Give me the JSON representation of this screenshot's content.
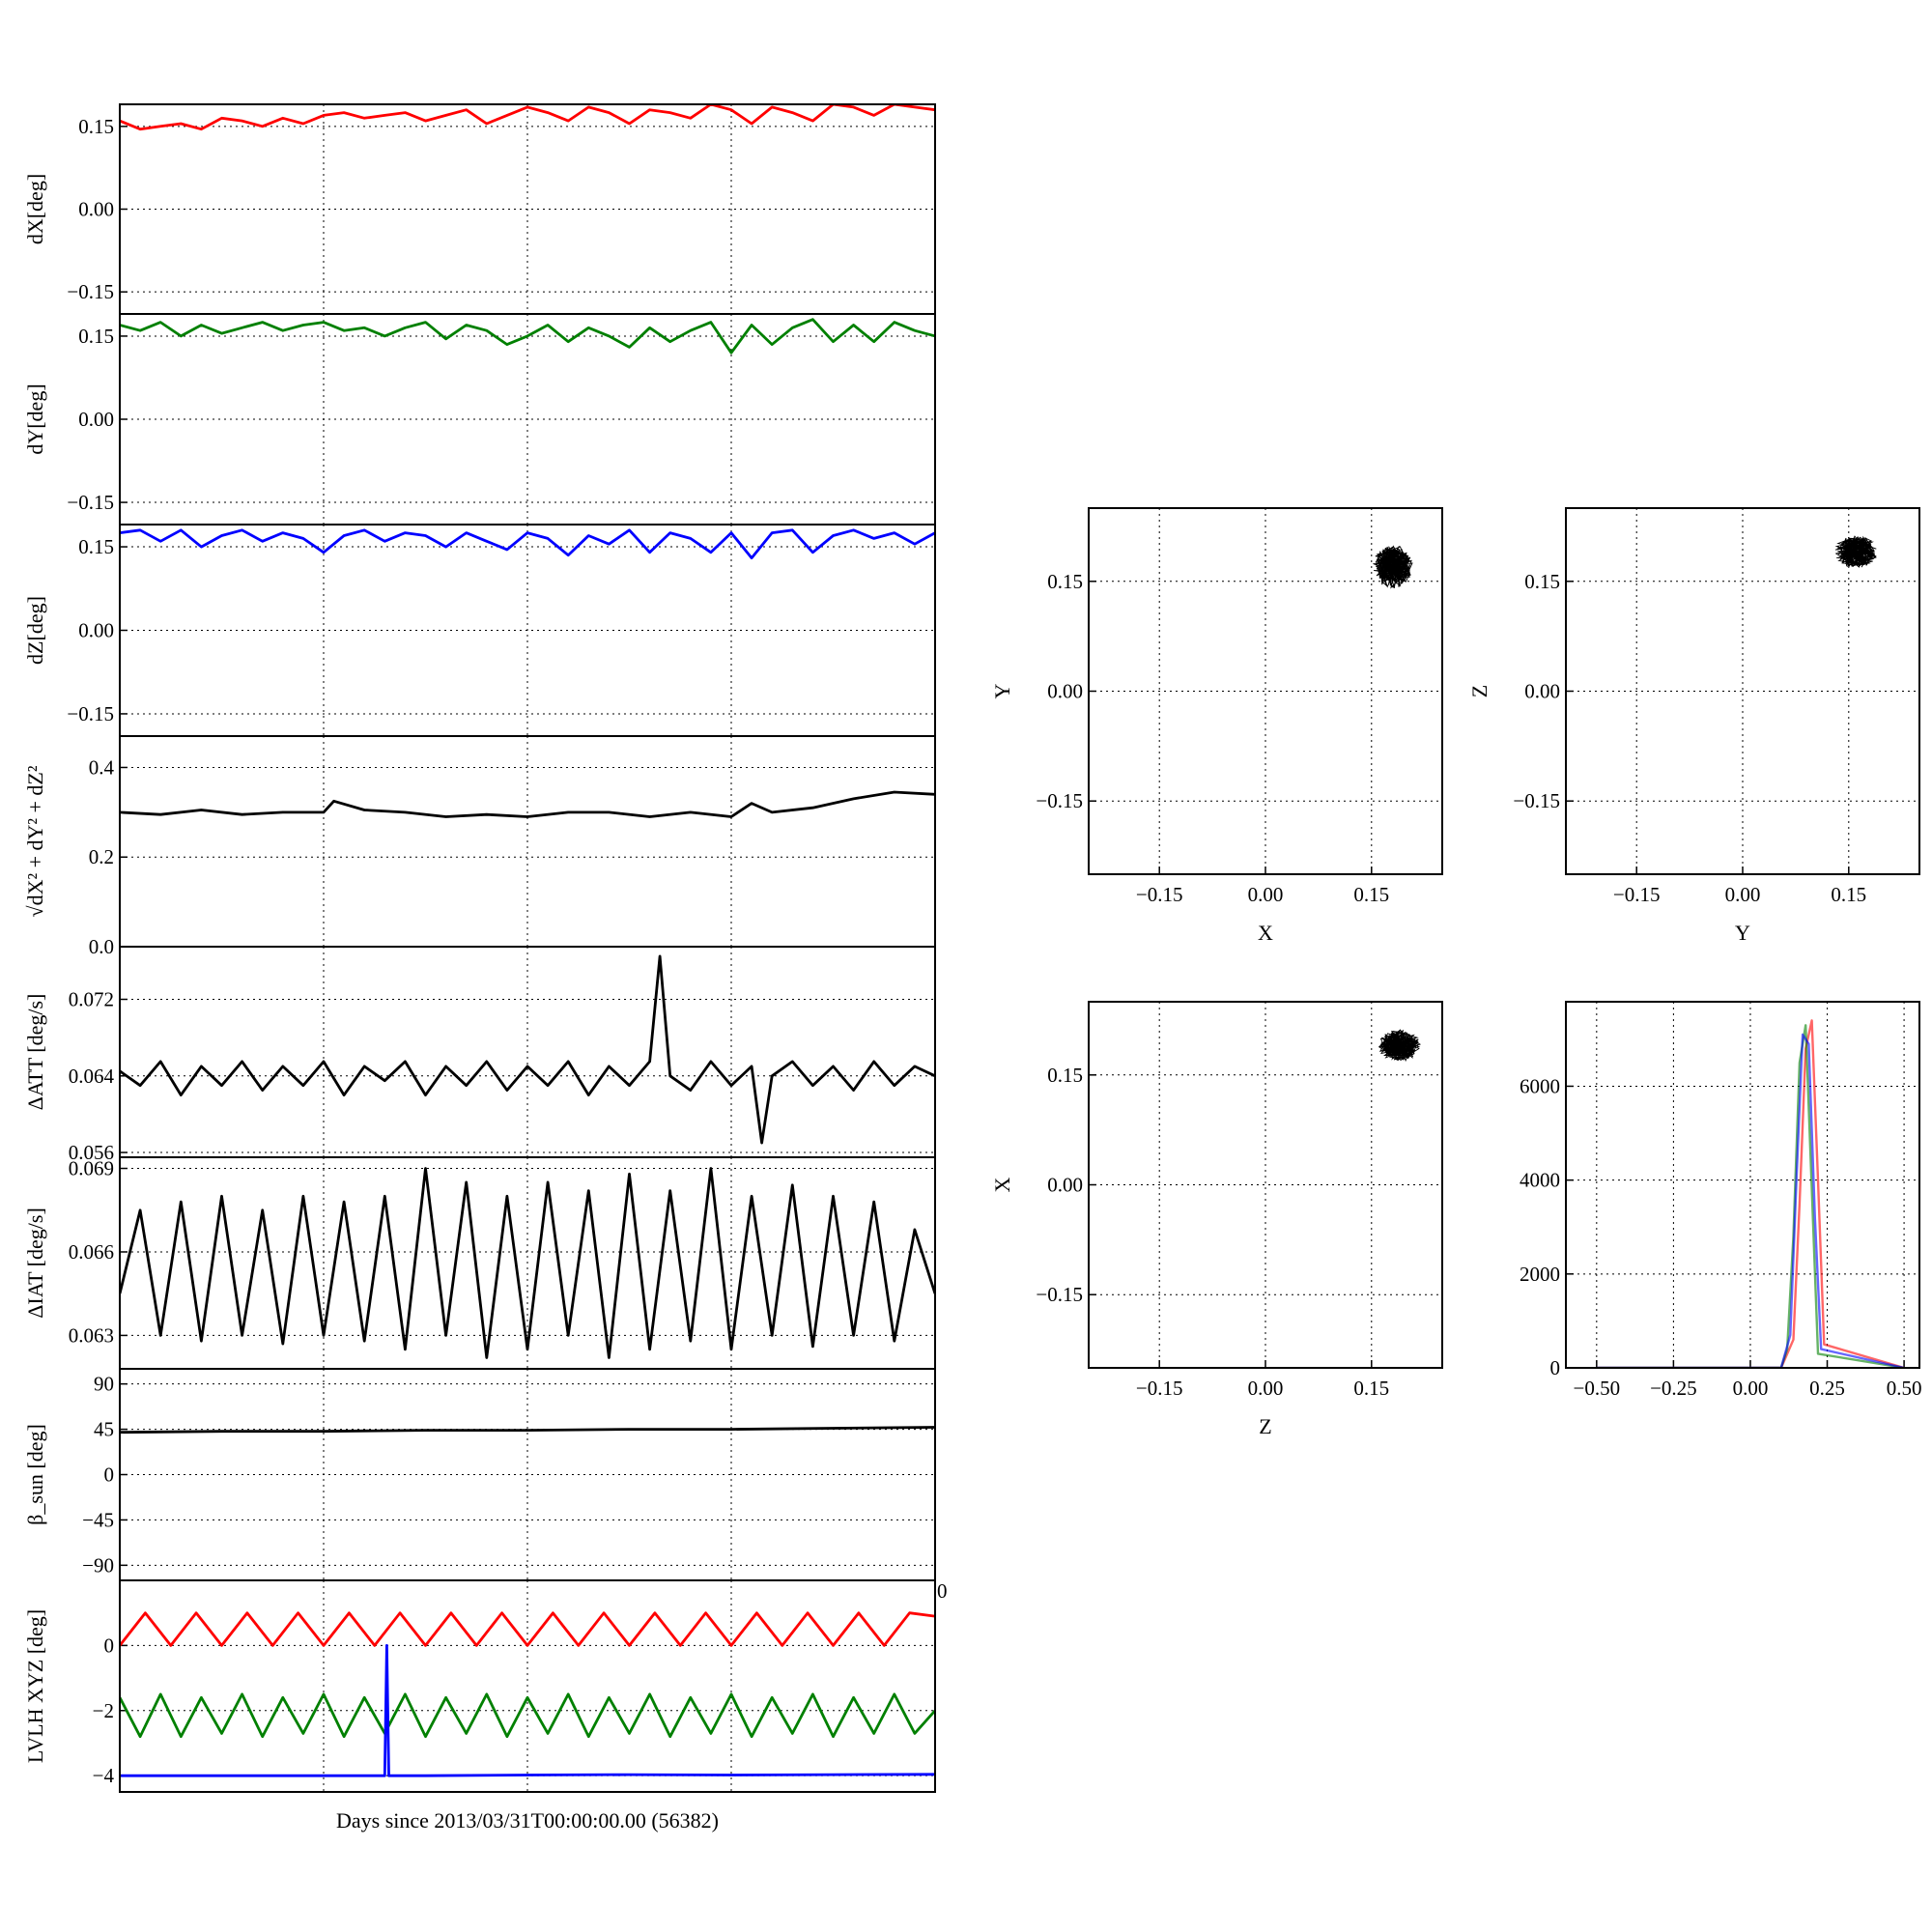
{
  "figure": {
    "xlabel": "Days since 2013/03/31T00:00:00.00 (56382)"
  },
  "colors": {
    "red": "#ff0000",
    "green": "#008000",
    "blue": "#0000ff",
    "black": "#000000"
  },
  "chart_data": [
    {
      "id": "dX",
      "type": "line",
      "ylabel": "dX[deg]",
      "ylim": [
        -0.19,
        0.19
      ],
      "yticks": [
        "0.15",
        "0.00",
        "−0.15"
      ],
      "ytick_values": [
        0.15,
        0.0,
        -0.15
      ],
      "xlim": [
        0,
        4
      ],
      "grid": true,
      "tick_labels_x": [],
      "series": [
        {
          "color": "#ff0000",
          "x": [
            0,
            0.1,
            0.2,
            0.3,
            0.4,
            0.5,
            0.6,
            0.7,
            0.8,
            0.9,
            1,
            1.1,
            1.2,
            1.3,
            1.4,
            1.5,
            1.6,
            1.7,
            1.8,
            1.9,
            2,
            2.1,
            2.2,
            2.3,
            2.4,
            2.5,
            2.6,
            2.7,
            2.8,
            2.9,
            3,
            3.1,
            3.2,
            3.3,
            3.4,
            3.5,
            3.6,
            3.7,
            3.8,
            3.9,
            4
          ],
          "y": [
            0.16,
            0.145,
            0.15,
            0.155,
            0.145,
            0.165,
            0.16,
            0.15,
            0.165,
            0.155,
            0.17,
            0.175,
            0.165,
            0.17,
            0.175,
            0.16,
            0.17,
            0.18,
            0.155,
            0.17,
            0.185,
            0.175,
            0.16,
            0.185,
            0.175,
            0.155,
            0.18,
            0.175,
            0.165,
            0.19,
            0.18,
            0.155,
            0.185,
            0.175,
            0.16,
            0.19,
            0.185,
            0.17,
            0.19,
            0.185,
            0.18
          ]
        }
      ]
    },
    {
      "id": "dY",
      "type": "line",
      "ylabel": "dY[deg]",
      "ylim": [
        -0.19,
        0.19
      ],
      "yticks": [
        "0.15",
        "0.00",
        "−0.15"
      ],
      "ytick_values": [
        0.15,
        0.0,
        -0.15
      ],
      "xlim": [
        0,
        4
      ],
      "grid": true,
      "tick_labels_x": [],
      "series": [
        {
          "color": "#008000",
          "x": [
            0,
            0.1,
            0.2,
            0.3,
            0.4,
            0.5,
            0.6,
            0.7,
            0.8,
            0.9,
            1,
            1.1,
            1.2,
            1.3,
            1.4,
            1.5,
            1.6,
            1.7,
            1.8,
            1.9,
            2,
            2.1,
            2.2,
            2.3,
            2.4,
            2.5,
            2.6,
            2.7,
            2.8,
            2.9,
            3,
            3.1,
            3.2,
            3.3,
            3.4,
            3.5,
            3.6,
            3.7,
            3.8,
            3.9,
            4
          ],
          "y": [
            0.17,
            0.16,
            0.175,
            0.15,
            0.17,
            0.155,
            0.165,
            0.175,
            0.16,
            0.17,
            0.175,
            0.16,
            0.165,
            0.15,
            0.165,
            0.175,
            0.145,
            0.17,
            0.16,
            0.135,
            0.15,
            0.17,
            0.14,
            0.165,
            0.15,
            0.13,
            0.165,
            0.14,
            0.16,
            0.175,
            0.12,
            0.17,
            0.135,
            0.165,
            0.18,
            0.14,
            0.17,
            0.14,
            0.175,
            0.16,
            0.15
          ]
        }
      ]
    },
    {
      "id": "dZ",
      "type": "line",
      "ylabel": "dZ[deg]",
      "ylim": [
        -0.19,
        0.19
      ],
      "yticks": [
        "0.15",
        "0.00",
        "−0.15"
      ],
      "ytick_values": [
        0.15,
        0.0,
        -0.15
      ],
      "xlim": [
        0,
        4
      ],
      "grid": true,
      "tick_labels_x": [],
      "series": [
        {
          "color": "#0000ff",
          "x": [
            0,
            0.1,
            0.2,
            0.3,
            0.4,
            0.5,
            0.6,
            0.7,
            0.8,
            0.9,
            1,
            1.1,
            1.2,
            1.3,
            1.4,
            1.5,
            1.6,
            1.7,
            1.8,
            1.9,
            2,
            2.1,
            2.2,
            2.3,
            2.4,
            2.5,
            2.6,
            2.7,
            2.8,
            2.9,
            3,
            3.1,
            3.2,
            3.3,
            3.4,
            3.5,
            3.6,
            3.7,
            3.8,
            3.9,
            4
          ],
          "y": [
            0.175,
            0.18,
            0.16,
            0.18,
            0.15,
            0.17,
            0.18,
            0.16,
            0.175,
            0.165,
            0.14,
            0.17,
            0.18,
            0.16,
            0.175,
            0.17,
            0.15,
            0.175,
            0.16,
            0.145,
            0.175,
            0.165,
            0.135,
            0.17,
            0.155,
            0.18,
            0.14,
            0.175,
            0.165,
            0.14,
            0.175,
            0.13,
            0.175,
            0.18,
            0.14,
            0.17,
            0.18,
            0.165,
            0.175,
            0.155,
            0.175
          ]
        }
      ]
    },
    {
      "id": "mag",
      "type": "line",
      "ylabel": "√dX² + dY² + dZ²",
      "ylim": [
        0,
        0.47
      ],
      "yticks": [
        "0.4",
        "0.2",
        "0.0"
      ],
      "ytick_values": [
        0.4,
        0.2,
        0.0
      ],
      "xlim": [
        0,
        4
      ],
      "grid": true,
      "tick_labels_x": [],
      "series": [
        {
          "color": "#000000",
          "x": [
            0,
            0.2,
            0.4,
            0.6,
            0.8,
            1,
            1.05,
            1.2,
            1.4,
            1.6,
            1.8,
            2,
            2.2,
            2.4,
            2.6,
            2.8,
            3,
            3.1,
            3.2,
            3.4,
            3.6,
            3.8,
            4
          ],
          "y": [
            0.3,
            0.295,
            0.305,
            0.295,
            0.3,
            0.3,
            0.325,
            0.305,
            0.3,
            0.29,
            0.295,
            0.29,
            0.3,
            0.3,
            0.29,
            0.3,
            0.29,
            0.32,
            0.3,
            0.31,
            0.33,
            0.345,
            0.34
          ]
        }
      ]
    },
    {
      "id": "att",
      "type": "line",
      "ylabel": "ΔATT [deg/s]",
      "ylim": [
        0.0555,
        0.0775
      ],
      "yticks": [
        "0.072",
        "0.064",
        "0.056"
      ],
      "ytick_values": [
        0.072,
        0.064,
        0.056
      ],
      "xlim": [
        0,
        4
      ],
      "grid": true,
      "tick_labels_x": [],
      "series": [
        {
          "color": "#000000",
          "x": [
            0,
            0.1,
            0.2,
            0.3,
            0.4,
            0.5,
            0.6,
            0.7,
            0.8,
            0.9,
            1,
            1.1,
            1.2,
            1.3,
            1.4,
            1.5,
            1.6,
            1.7,
            1.8,
            1.9,
            2,
            2.1,
            2.2,
            2.3,
            2.4,
            2.5,
            2.6,
            2.65,
            2.7,
            2.8,
            2.9,
            3,
            3.1,
            3.15,
            3.2,
            3.3,
            3.4,
            3.5,
            3.6,
            3.7,
            3.8,
            3.9,
            4
          ],
          "y": [
            0.0645,
            0.063,
            0.0655,
            0.062,
            0.065,
            0.063,
            0.0655,
            0.0625,
            0.065,
            0.063,
            0.0655,
            0.062,
            0.065,
            0.0635,
            0.0655,
            0.062,
            0.065,
            0.063,
            0.0655,
            0.0625,
            0.065,
            0.063,
            0.0655,
            0.062,
            0.065,
            0.063,
            0.0655,
            0.0765,
            0.064,
            0.0625,
            0.0655,
            0.063,
            0.065,
            0.057,
            0.064,
            0.0655,
            0.063,
            0.065,
            0.0625,
            0.0655,
            0.063,
            0.065,
            0.064
          ]
        }
      ]
    },
    {
      "id": "iat",
      "type": "line",
      "ylabel": "ΔIAT [deg/s]",
      "ylim": [
        0.0618,
        0.0694
      ],
      "yticks": [
        "0.069",
        "0.066",
        "0.063"
      ],
      "ytick_values": [
        0.069,
        0.066,
        0.063
      ],
      "xlim": [
        0,
        4
      ],
      "grid": true,
      "tick_labels_x": [],
      "series": [
        {
          "color": "#000000",
          "x": [
            0,
            0.1,
            0.2,
            0.3,
            0.4,
            0.5,
            0.6,
            0.7,
            0.8,
            0.9,
            1,
            1.1,
            1.2,
            1.3,
            1.4,
            1.5,
            1.6,
            1.7,
            1.8,
            1.9,
            2,
            2.1,
            2.2,
            2.3,
            2.4,
            2.5,
            2.6,
            2.7,
            2.8,
            2.9,
            3,
            3.1,
            3.2,
            3.3,
            3.4,
            3.5,
            3.6,
            3.7,
            3.8,
            3.9,
            4
          ],
          "y": [
            0.0645,
            0.0675,
            0.063,
            0.0678,
            0.0628,
            0.068,
            0.063,
            0.0675,
            0.0627,
            0.068,
            0.063,
            0.0678,
            0.0628,
            0.068,
            0.0625,
            0.069,
            0.063,
            0.0685,
            0.0622,
            0.068,
            0.0625,
            0.0685,
            0.063,
            0.0682,
            0.0622,
            0.0688,
            0.0625,
            0.0682,
            0.0628,
            0.069,
            0.0625,
            0.068,
            0.063,
            0.0684,
            0.0626,
            0.068,
            0.063,
            0.0678,
            0.0628,
            0.0668,
            0.0645
          ]
        }
      ]
    },
    {
      "id": "beta",
      "type": "line",
      "ylabel": "β_sun [deg]",
      "ylim": [
        -105,
        105
      ],
      "yticks": [
        "90",
        "45",
        "0",
        "−45",
        "−90"
      ],
      "ytick_values": [
        90,
        45,
        0,
        -45,
        -90
      ],
      "xlim": [
        0,
        4
      ],
      "grid": true,
      "tick_labels_x": [],
      "series": [
        {
          "color": "#000000",
          "x": [
            0,
            0.5,
            1,
            1.5,
            2,
            2.5,
            3,
            3.5,
            4
          ],
          "y": [
            42,
            43,
            43,
            44,
            44,
            45,
            45,
            46,
            47
          ]
        }
      ]
    },
    {
      "id": "lvlh",
      "type": "line",
      "ylabel": "LVLH XYZ [deg]",
      "ylim": [
        -4.5,
        2
      ],
      "yticks": [
        "0",
        "−2",
        "−4"
      ],
      "ytick_values": [
        0,
        -2,
        -4
      ],
      "xlim": [
        0,
        4
      ],
      "grid": true,
      "tick_labels_x": [],
      "corner_tick": "0",
      "series": [
        {
          "color": "#ff0000",
          "x": [
            0,
            0.125,
            0.25,
            0.375,
            0.5,
            0.625,
            0.75,
            0.875,
            1,
            1.125,
            1.25,
            1.375,
            1.5,
            1.625,
            1.75,
            1.875,
            2,
            2.125,
            2.25,
            2.375,
            2.5,
            2.625,
            2.75,
            2.875,
            3,
            3.125,
            3.25,
            3.375,
            3.5,
            3.625,
            3.75,
            3.875,
            4
          ],
          "y": [
            0,
            1,
            0,
            1,
            0,
            1,
            0,
            1,
            0,
            1,
            0,
            1,
            0,
            1,
            0,
            1,
            0,
            1,
            0,
            1,
            0,
            1,
            0,
            1,
            0,
            1,
            0,
            1,
            0,
            1,
            0,
            1,
            0.9
          ]
        },
        {
          "color": "#008000",
          "x": [
            0,
            0.1,
            0.2,
            0.3,
            0.4,
            0.5,
            0.6,
            0.7,
            0.8,
            0.9,
            1,
            1.1,
            1.2,
            1.3,
            1.4,
            1.5,
            1.6,
            1.7,
            1.8,
            1.9,
            2,
            2.1,
            2.2,
            2.3,
            2.4,
            2.5,
            2.6,
            2.7,
            2.8,
            2.9,
            3,
            3.1,
            3.2,
            3.3,
            3.4,
            3.5,
            3.6,
            3.7,
            3.8,
            3.9,
            4
          ],
          "y": [
            -1.6,
            -2.8,
            -1.5,
            -2.8,
            -1.6,
            -2.7,
            -1.5,
            -2.8,
            -1.6,
            -2.7,
            -1.5,
            -2.8,
            -1.6,
            -2.7,
            -1.5,
            -2.8,
            -1.6,
            -2.7,
            -1.5,
            -2.8,
            -1.6,
            -2.7,
            -1.5,
            -2.8,
            -1.6,
            -2.7,
            -1.5,
            -2.8,
            -1.6,
            -2.7,
            -1.5,
            -2.8,
            -1.6,
            -2.7,
            -1.5,
            -2.8,
            -1.6,
            -2.7,
            -1.5,
            -2.7,
            -2.0
          ]
        },
        {
          "color": "#0000ff",
          "x": [
            0,
            0.5,
            1,
            1.3,
            1.31,
            1.32,
            1.33,
            1.5,
            2,
            2.5,
            3,
            3.5,
            4
          ],
          "y": [
            -4.0,
            -4.0,
            -4.0,
            -4.0,
            0.0,
            -4.0,
            -4.0,
            -4.0,
            -3.98,
            -3.97,
            -3.98,
            -3.97,
            -3.96
          ]
        }
      ]
    },
    {
      "id": "xy",
      "type": "scatter",
      "xlabel": "X",
      "ylabel": "Y",
      "xlim": [
        -0.25,
        0.25
      ],
      "ylim": [
        -0.25,
        0.25
      ],
      "xticks": [
        "−0.15",
        "0.00",
        "0.15"
      ],
      "xtick_values": [
        -0.15,
        0.0,
        0.15
      ],
      "yticks": [
        "0.15",
        "0.00",
        "−0.15"
      ],
      "ytick_values": [
        0.15,
        0.0,
        -0.15
      ],
      "grid": true,
      "cluster": {
        "center": [
          0.18,
          0.17
        ],
        "spread": [
          0.028,
          0.03
        ]
      }
    },
    {
      "id": "yz",
      "type": "scatter",
      "xlabel": "Y",
      "ylabel": "Z",
      "xlim": [
        -0.25,
        0.25
      ],
      "ylim": [
        -0.25,
        0.25
      ],
      "xticks": [
        "−0.15",
        "0.00",
        "0.15"
      ],
      "xtick_values": [
        -0.15,
        0.0,
        0.15
      ],
      "yticks": [
        "0.15",
        "0.00",
        "−0.15"
      ],
      "ytick_values": [
        0.15,
        0.0,
        -0.15
      ],
      "grid": true,
      "cluster": {
        "center": [
          0.16,
          0.19
        ],
        "spread": [
          0.03,
          0.022
        ]
      }
    },
    {
      "id": "zx",
      "type": "scatter",
      "xlabel": "Z",
      "ylabel": "X",
      "xlim": [
        -0.25,
        0.25
      ],
      "ylim": [
        -0.25,
        0.25
      ],
      "xticks": [
        "−0.15",
        "0.00",
        "0.15"
      ],
      "xtick_values": [
        -0.15,
        0.0,
        0.15
      ],
      "yticks": [
        "0.15",
        "0.00",
        "−0.15"
      ],
      "ytick_values": [
        0.15,
        0.0,
        -0.15
      ],
      "grid": true,
      "cluster": {
        "center": [
          0.19,
          0.19
        ],
        "spread": [
          0.03,
          0.022
        ]
      }
    },
    {
      "id": "hist",
      "type": "line",
      "xlabel": "",
      "ylabel": "",
      "xlim": [
        -0.6,
        0.55
      ],
      "ylim": [
        0,
        7800
      ],
      "xticks": [
        "−0.50",
        "−0.25",
        "0.00",
        "0.25",
        "0.50"
      ],
      "xtick_values": [
        -0.5,
        -0.25,
        0,
        0.25,
        0.5
      ],
      "yticks": [
        "6000",
        "4000",
        "2000",
        "0"
      ],
      "ytick_values": [
        6000,
        4000,
        2000,
        0
      ],
      "grid": true,
      "series": [
        {
          "color": "#ff0000",
          "x": [
            -0.5,
            0.1,
            0.14,
            0.16,
            0.18,
            0.2,
            0.22,
            0.24,
            0.5
          ],
          "y": [
            0,
            0,
            600,
            3500,
            6800,
            7400,
            4000,
            500,
            0
          ]
        },
        {
          "color": "#008000",
          "x": [
            -0.5,
            0.1,
            0.12,
            0.14,
            0.16,
            0.18,
            0.2,
            0.22,
            0.5
          ],
          "y": [
            0,
            0,
            400,
            2800,
            6500,
            7300,
            3800,
            300,
            0
          ]
        },
        {
          "color": "#0000ff",
          "x": [
            -0.5,
            0.1,
            0.13,
            0.15,
            0.17,
            0.19,
            0.21,
            0.23,
            0.5
          ],
          "y": [
            0,
            0,
            700,
            4000,
            7100,
            6900,
            3200,
            400,
            0
          ]
        }
      ]
    }
  ]
}
